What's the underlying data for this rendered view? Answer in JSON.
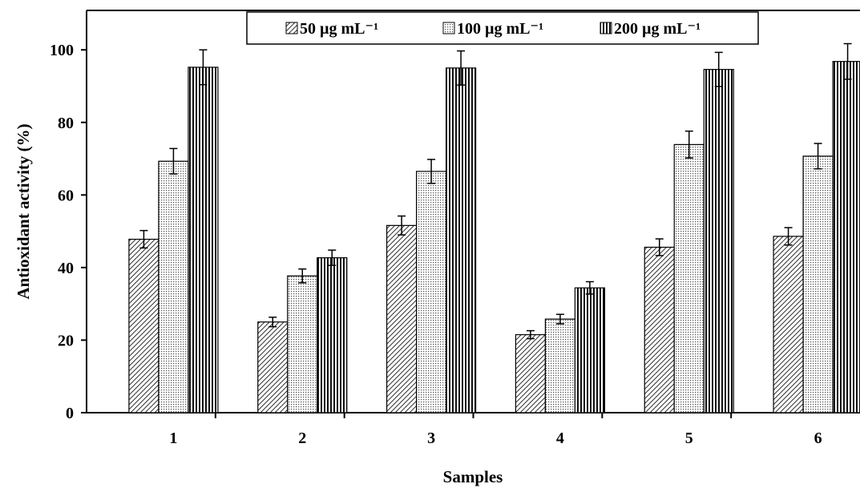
{
  "chart_data": {
    "type": "bar",
    "title": "",
    "xlabel": "Samples",
    "ylabel": "Antioxidant activity (%)",
    "categories": [
      "1",
      "2",
      "3",
      "4",
      "5",
      "6"
    ],
    "ylim": [
      0,
      110
    ],
    "yticks": [
      0,
      20,
      40,
      60,
      80,
      100
    ],
    "grid": false,
    "legend_position": "top",
    "series": [
      {
        "name": "50 µg mL⁻¹",
        "pattern": "diagonal-hatch",
        "values": [
          47.8,
          25.0,
          51.6,
          21.5,
          45.6,
          48.6
        ],
        "errors": [
          2.4,
          1.3,
          2.6,
          1.1,
          2.3,
          2.4
        ]
      },
      {
        "name": "100 µg mL⁻¹",
        "pattern": "dots",
        "values": [
          69.3,
          37.7,
          66.5,
          25.8,
          73.9,
          70.7
        ],
        "errors": [
          3.5,
          1.9,
          3.3,
          1.3,
          3.7,
          3.5
        ]
      },
      {
        "name": "200 µg mL⁻¹",
        "pattern": "vertical-stripes",
        "values": [
          95.2,
          42.7,
          95.0,
          34.4,
          94.6,
          96.8
        ],
        "errors": [
          4.8,
          2.1,
          4.7,
          1.7,
          4.7,
          4.9
        ]
      }
    ],
    "colors": {
      "stroke": "#000000",
      "bar_fill": "#ffffff",
      "pattern": "#333333"
    }
  }
}
